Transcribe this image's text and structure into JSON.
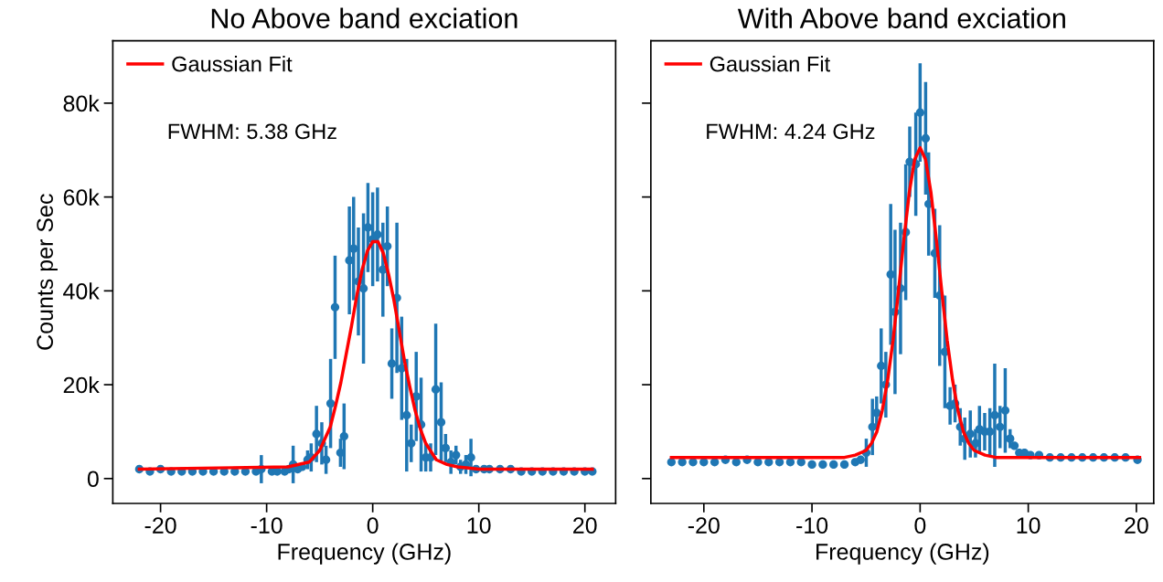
{
  "chart_data": [
    {
      "type": "scatter",
      "title": "No Above band exciation",
      "xlabel": "Frequency (GHz)",
      "ylabel": "Counts per Sec",
      "annotations": [
        "FWHM: 5.38 GHz"
      ],
      "legend": "top left",
      "grid": false,
      "xlim": [
        -24.5,
        22.9
      ],
      "xticks": [
        -20,
        -10,
        0,
        10,
        20
      ],
      "ylim": [
        -5300,
        93300
      ],
      "yticks": [
        0,
        {
          "value": 20000,
          "label": "20k"
        },
        {
          "value": 40000,
          "label": "40k"
        },
        {
          "value": 60000,
          "label": "60k"
        },
        {
          "value": 80000,
          "label": "80k"
        }
      ],
      "series": [
        {
          "color": "#1f77b4",
          "marker": "circle",
          "x": [
            -22,
            -21,
            -20,
            -19,
            -18,
            -17,
            -16,
            -15,
            -14,
            -13,
            -12,
            -11,
            -10.5,
            -9.5,
            -9,
            -8.3,
            -7.9,
            -7.5,
            -7.07,
            -6.65,
            -6.14,
            -5.8,
            -5.3,
            -4.8,
            -4.4,
            -3.97,
            -3.55,
            -3.04,
            -2.7,
            -2.2,
            -1.8,
            -1.35,
            -0.87,
            -0.45,
            0,
            0.45,
            0.96,
            1.38,
            1.8,
            2.28,
            2.73,
            3.2,
            3.63,
            4.1,
            4.56,
            5.0,
            5.46,
            5.94,
            6.45,
            6.87,
            7.37,
            7.85,
            8.28,
            8.78,
            9.26,
            9.74,
            10.5,
            11,
            12,
            13,
            14,
            15,
            16,
            17,
            18,
            19,
            20,
            20.7
          ],
          "values": [
            2000,
            1500,
            2000,
            1500,
            1500,
            1500,
            1500,
            1500,
            1500,
            1500,
            1500,
            1500,
            2000,
            1500,
            1500,
            1500,
            2000,
            3000,
            2000,
            2500,
            4000,
            4500,
            9500,
            7500,
            4000,
            16000,
            36500,
            5500,
            9000,
            46500,
            49000,
            42000,
            40500,
            53500,
            51000,
            52000,
            44500,
            49500,
            24500,
            38500,
            23500,
            13500,
            7500,
            17500,
            11500,
            4500,
            4500,
            19000,
            12000,
            6500,
            3500,
            5000,
            2500,
            3000,
            4500,
            2000,
            2000,
            2000,
            2000,
            2000,
            1500,
            1500,
            1500,
            1500,
            1500,
            1500,
            1500,
            1500
          ],
          "errors": [
            null,
            null,
            null,
            null,
            null,
            null,
            null,
            null,
            null,
            null,
            null,
            null,
            3000,
            null,
            null,
            null,
            null,
            4000,
            null,
            null,
            2000,
            3000,
            6000,
            4500,
            3000,
            9500,
            11000,
            3000,
            7000,
            11500,
            11000,
            11500,
            16000,
            9500,
            10000,
            10000,
            10000,
            8500,
            7500,
            16000,
            11000,
            12000,
            4000,
            9500,
            10000,
            3000,
            3000,
            14000,
            8500,
            3000,
            2500,
            2000,
            1500,
            2000,
            4000,
            null,
            null,
            null,
            null,
            null,
            null,
            null,
            null,
            null,
            null,
            null,
            null,
            null
          ]
        },
        {
          "type": "line",
          "name": "Gaussian Fit",
          "color": "#ff0000",
          "marker": "none",
          "x": [
            -22,
            -8,
            -6,
            -5,
            -4,
            -3.5,
            -3,
            -2.5,
            -2,
            -1.5,
            -1,
            -0.5,
            0,
            0.2,
            0.5,
            1,
            1.5,
            2,
            2.5,
            3,
            3.5,
            4,
            4.5,
            5,
            6,
            7,
            8,
            10,
            20.7
          ],
          "values": [
            2000,
            2500,
            3500,
            6000,
            11000,
            15500,
            20500,
            26500,
            32500,
            39000,
            44500,
            48500,
            50500,
            50500,
            50500,
            48000,
            43500,
            38000,
            31500,
            25000,
            19500,
            14500,
            10500,
            7500,
            4000,
            3000,
            2500,
            2000,
            2000
          ]
        }
      ]
    },
    {
      "type": "scatter",
      "title": "With Above band exciation",
      "xlabel": "Frequency (GHz)",
      "annotations": [
        "FWHM: 4.24 GHz"
      ],
      "legend": "top left",
      "grid": false,
      "tick_labels": "x",
      "xlim": [
        -24.9,
        21.6
      ],
      "xticks": [
        -20,
        -10,
        0,
        10,
        20
      ],
      "ylim": [
        -5300,
        93300
      ],
      "yticks": [
        0,
        20000,
        40000,
        60000,
        80000
      ],
      "series": [
        {
          "color": "#1f77b4",
          "marker": "circle",
          "x": [
            -23,
            -22,
            -21,
            -20,
            -19,
            -18,
            -17,
            -16,
            -15,
            -14,
            -13,
            -12,
            -11,
            -10,
            -9,
            -8,
            -7,
            -6,
            -5.5,
            -4.98,
            -4.41,
            -4.02,
            -3.6,
            -3.17,
            -2.72,
            -2.32,
            -1.81,
            -1.33,
            -0.96,
            -0.4,
            0,
            0.51,
            0.79,
            1.36,
            1.81,
            2.29,
            2.77,
            3.23,
            3.71,
            4.13,
            4.64,
            5.12,
            5.49,
            5.97,
            6.45,
            6.9,
            7.39,
            7.87,
            8.32,
            8.72,
            9.17,
            9.65,
            10.2,
            11,
            12,
            13,
            14,
            15,
            16,
            17,
            18,
            19,
            20.1
          ],
          "values": [
            3500,
            3500,
            3500,
            3500,
            3500,
            4000,
            3500,
            4000,
            3500,
            3500,
            3500,
            3500,
            3500,
            3000,
            3000,
            3000,
            3000,
            3500,
            4000,
            5500,
            11000,
            14000,
            24000,
            20000,
            43500,
            35500,
            40500,
            52500,
            67500,
            67000,
            78000,
            72500,
            58500,
            48000,
            39000,
            27000,
            15500,
            16000,
            11000,
            8500,
            9500,
            7500,
            10500,
            10000,
            10000,
            13500,
            11000,
            14500,
            8500,
            7000,
            5500,
            5500,
            5000,
            5000,
            4500,
            4500,
            4500,
            4500,
            4500,
            4500,
            4500,
            4500,
            4000
          ],
          "errors": [
            null,
            null,
            null,
            null,
            null,
            null,
            null,
            null,
            null,
            null,
            null,
            null,
            null,
            null,
            null,
            null,
            null,
            null,
            null,
            3000,
            6000,
            3500,
            8000,
            7000,
            15000,
            17500,
            14000,
            14500,
            7500,
            11000,
            10500,
            12000,
            11000,
            9500,
            15000,
            12000,
            4000,
            4000,
            4000,
            4500,
            5000,
            3000,
            5000,
            4000,
            5000,
            11000,
            4500,
            9000,
            2000,
            null,
            null,
            null,
            null,
            null,
            null,
            null,
            null,
            null,
            null,
            null,
            null,
            null,
            null
          ]
        },
        {
          "type": "line",
          "name": "Gaussian Fit",
          "color": "#ff0000",
          "marker": "none",
          "x": [
            -23,
            -7,
            -6,
            -5,
            -4.5,
            -4,
            -3.5,
            -3,
            -2.5,
            -2,
            -1.5,
            -1,
            -0.5,
            0,
            0.5,
            1,
            1.5,
            2,
            2.5,
            3,
            3.5,
            4,
            4.5,
            5,
            6,
            7,
            20.3
          ],
          "values": [
            4500,
            4500,
            5000,
            6000,
            7500,
            10000,
            14500,
            21000,
            29500,
            40000,
            51000,
            61000,
            68000,
            70500,
            68000,
            61000,
            51000,
            40000,
            29500,
            21000,
            14500,
            10000,
            7500,
            6000,
            5000,
            4500,
            4500
          ]
        }
      ]
    }
  ]
}
